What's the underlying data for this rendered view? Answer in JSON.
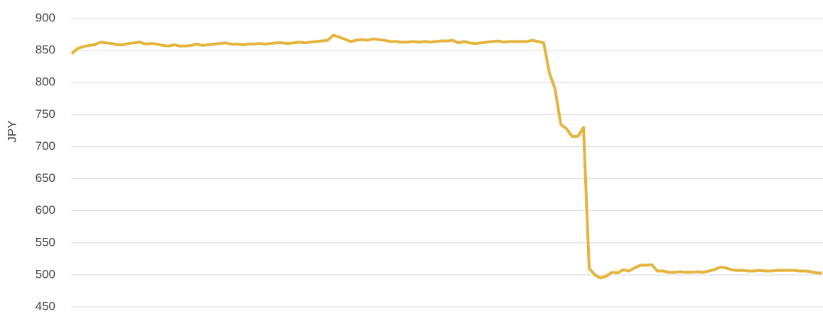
{
  "chart_data": {
    "type": "line",
    "y_label": "JPY",
    "color": "#e6b43c",
    "grid": true,
    "ylim": [
      450,
      900
    ],
    "yticks": [
      450,
      500,
      550,
      600,
      650,
      700,
      750,
      800,
      850,
      900
    ],
    "values": [
      845,
      853,
      856,
      858,
      859,
      863,
      862,
      861,
      859,
      859,
      861,
      862,
      863,
      860,
      861,
      860,
      858,
      857,
      859,
      857,
      857,
      858,
      860,
      858,
      859,
      860,
      861,
      862,
      860,
      860,
      859,
      860,
      860,
      861,
      860,
      861,
      862,
      862,
      861,
      862,
      863,
      862,
      863,
      864,
      865,
      866,
      874,
      871,
      868,
      864,
      866,
      867,
      866,
      868,
      867,
      866,
      864,
      864,
      863,
      863,
      864,
      863,
      864,
      863,
      864,
      865,
      865,
      866,
      862,
      864,
      862,
      861,
      862,
      863,
      864,
      865,
      863,
      864,
      864,
      864,
      864,
      866,
      864,
      862,
      815,
      790,
      735,
      728,
      716,
      716,
      730,
      510,
      500,
      495,
      498,
      504,
      503,
      508,
      506,
      511,
      515,
      515,
      516,
      506,
      506,
      504,
      504,
      505,
      504,
      504,
      505,
      504,
      506,
      508,
      512,
      511,
      508,
      507,
      507,
      506,
      506,
      507,
      506,
      506,
      507,
      507,
      507,
      507,
      506,
      506,
      505,
      503,
      503
    ]
  }
}
